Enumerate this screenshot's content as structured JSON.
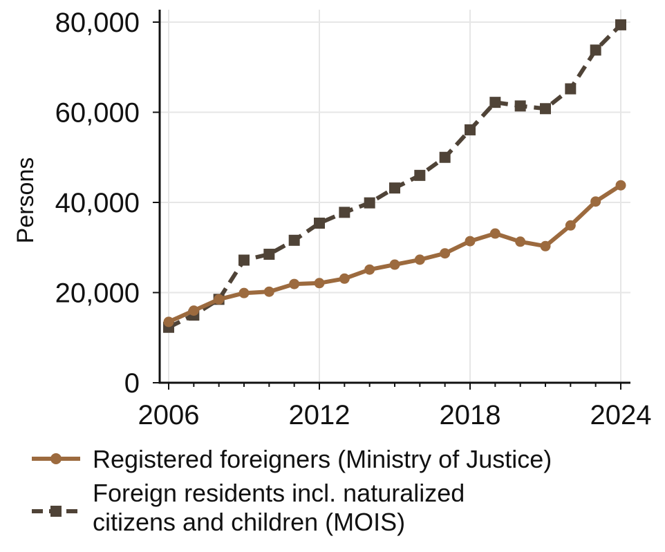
{
  "chart_data": {
    "type": "line",
    "x": [
      2006,
      2007,
      2008,
      2009,
      2010,
      2011,
      2012,
      2013,
      2014,
      2015,
      2016,
      2017,
      2018,
      2019,
      2020,
      2021,
      2022,
      2023,
      2024
    ],
    "series": [
      {
        "name": "Registered foreigners (Ministry of Justice)",
        "color": "#9c6a3e",
        "marker": "circle",
        "dash": "solid",
        "values": [
          13500,
          16000,
          18500,
          19900,
          20200,
          21900,
          22100,
          23100,
          25100,
          26200,
          27300,
          28700,
          31400,
          33100,
          31300,
          30300,
          34900,
          40200,
          43800
        ]
      },
      {
        "name": "Foreign residents incl. naturalized citizens and children (MOIS)",
        "color": "#4f4337",
        "marker": "square",
        "dash": "dashed",
        "values": [
          12300,
          15000,
          18500,
          27200,
          28500,
          31600,
          35400,
          37800,
          39900,
          43200,
          46000,
          50000,
          56100,
          62200,
          61400,
          60800,
          65200,
          73800,
          79400
        ]
      }
    ],
    "xticks": [
      "2006",
      "2012",
      "2018",
      "2024"
    ],
    "xtick_values": [
      2006,
      2012,
      2018,
      2024
    ],
    "yticks": [
      "0",
      "20,000",
      "40,000",
      "60,000",
      "80,000"
    ],
    "ytick_values": [
      0,
      20000,
      40000,
      60000,
      80000
    ],
    "xlim": [
      2006,
      2024
    ],
    "ylim": [
      0,
      80000
    ],
    "xlabel": "",
    "ylabel": "Persons",
    "grid": true,
    "legend_position": "bottom"
  }
}
